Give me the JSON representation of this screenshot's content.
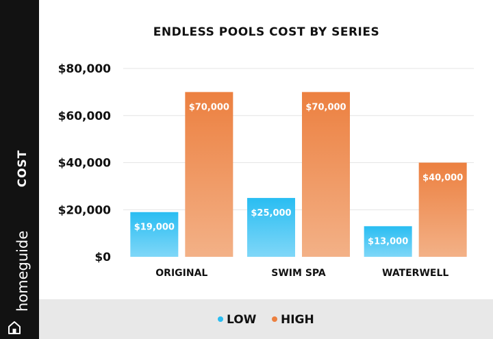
{
  "brand": {
    "name": "homeguide",
    "icon": "house-icon"
  },
  "colors": {
    "sidebar": "#121212",
    "legend_band": "#e8e8e8",
    "low": "#29bdf2",
    "low_light": "#7fd7f8",
    "high": "#ec8040",
    "high_light": "#f3b187",
    "grid": "#e4e4e4"
  },
  "chart_data": {
    "type": "bar",
    "title": "ENDLESS POOLS COST BY SERIES",
    "ylabel": "COST",
    "xlabel": "",
    "categories": [
      "ORIGINAL",
      "SWIM SPA",
      "WATERWELL"
    ],
    "series": [
      {
        "name": "LOW",
        "values": [
          19000,
          25000,
          13000
        ],
        "labels": [
          "$19,000",
          "$25,000",
          "$13,000"
        ]
      },
      {
        "name": "HIGH",
        "values": [
          70000,
          70000,
          40000
        ],
        "labels": [
          "$70,000",
          "$70,000",
          "$40,000"
        ]
      }
    ],
    "ylim": [
      0,
      80000
    ],
    "yticks": [
      0,
      20000,
      40000,
      60000,
      80000
    ],
    "ytick_labels": [
      "$0",
      "$20,000",
      "$40,000",
      "$60,000",
      "$80,000"
    ],
    "grid": true,
    "legend_position": "bottom"
  }
}
